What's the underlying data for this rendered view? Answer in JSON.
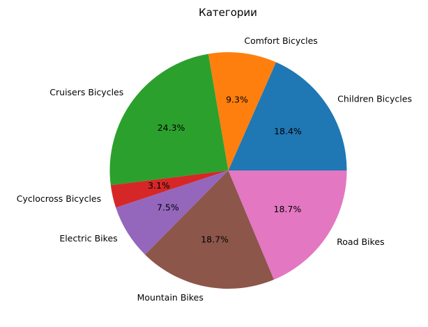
{
  "chart_data": {
    "type": "pie",
    "title": "Категории",
    "start_angle": 0,
    "direction": "counterclockwise",
    "slices": [
      {
        "label": "Children Bicycles",
        "value": 18.4,
        "pct_label": "18.4%",
        "color": "#1f77b4"
      },
      {
        "label": "Comfort Bicycles",
        "value": 9.3,
        "pct_label": "9.3%",
        "color": "#ff7f0e"
      },
      {
        "label": "Cruisers Bicycles",
        "value": 24.3,
        "pct_label": "24.3%",
        "color": "#2ca02c"
      },
      {
        "label": "Cyclocross Bicycles",
        "value": 3.1,
        "pct_label": "3.1%",
        "color": "#d62728"
      },
      {
        "label": "Electric Bikes",
        "value": 7.5,
        "pct_label": "7.5%",
        "color": "#9467bd"
      },
      {
        "label": "Mountain Bikes",
        "value": 18.7,
        "pct_label": "18.7%",
        "color": "#8c564b"
      },
      {
        "label": "Road Bikes",
        "value": 18.7,
        "pct_label": "18.7%",
        "color": "#e377c2"
      }
    ]
  }
}
